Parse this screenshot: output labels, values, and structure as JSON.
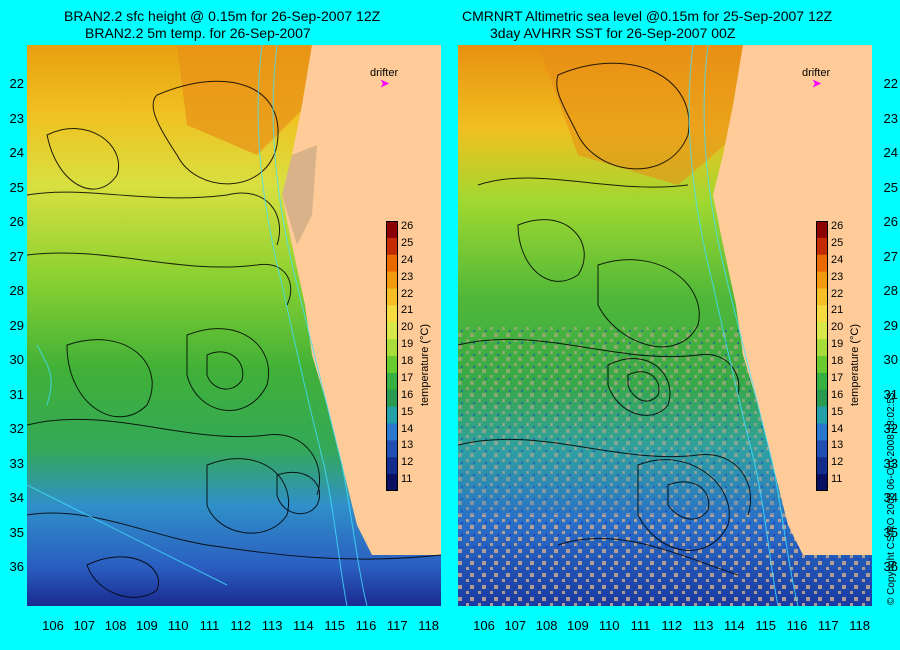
{
  "left_panel": {
    "title_line1": "BRAN2.2 sfc height @ 0.15m for 26-Sep-2007 12Z",
    "title_line2": "BRAN2.2 5m temp. for 26-Sep-2007"
  },
  "right_panel": {
    "title_line1": "CMRNRT Altimetric sea level  @0.15m  for 25-Sep-2007 12Z",
    "title_line2": "3day AVHRR SST for 26-Sep-2007 00Z"
  },
  "drifter_label": "drifter",
  "drifter_symbol": "➤",
  "latitude_labels": [
    "22",
    "23",
    "24",
    "25",
    "26",
    "27",
    "28",
    "29",
    "30",
    "31",
    "32",
    "33",
    "34",
    "35",
    "36"
  ],
  "longitude_labels": [
    "106",
    "107",
    "108",
    "109",
    "110",
    "111",
    "112",
    "113",
    "114",
    "115",
    "116",
    "117",
    "118"
  ],
  "colorbar": {
    "label": "temperature (°C)",
    "ticks": [
      "26",
      "25",
      "24",
      "23",
      "22",
      "21",
      "20",
      "19",
      "18",
      "17",
      "16",
      "15",
      "14",
      "13",
      "12",
      "11"
    ],
    "colors": [
      "#8b0000",
      "#c42b00",
      "#e86a00",
      "#f29a10",
      "#f5bf25",
      "#f6dc40",
      "#d8e84a",
      "#a8dc3a",
      "#6acb30",
      "#36b040",
      "#2a9a50",
      "#26a0a8",
      "#2a78cc",
      "#1f4fb0",
      "#142c8c",
      "#0a1060"
    ]
  },
  "copyright": "© Copyright CSIRO 2008   06-Oct-2008 18:02:53",
  "colors": {
    "background": "#00ffff",
    "land": "#ffcc99",
    "drifter": "#ff00ff"
  }
}
